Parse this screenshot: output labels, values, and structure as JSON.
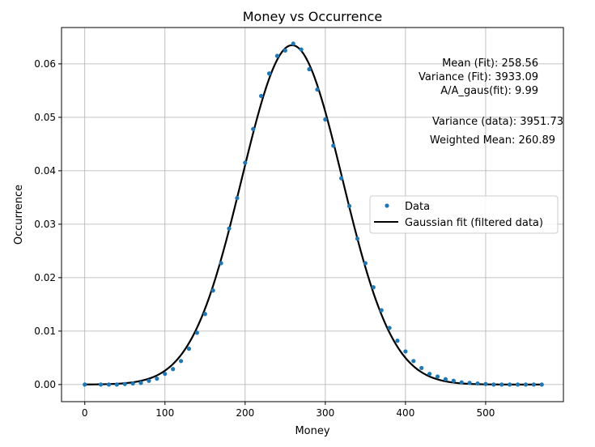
{
  "chart_data": {
    "type": "scatter",
    "title": "Money vs Occurrence",
    "xlabel": "Money",
    "ylabel": "Occurrence",
    "xlim": [
      -29,
      597
    ],
    "ylim": [
      -0.0032,
      0.0668
    ],
    "xticks": [
      0,
      100,
      200,
      300,
      400,
      500
    ],
    "yticks": [
      0.0,
      0.01,
      0.02,
      0.03,
      0.04,
      0.05,
      0.06
    ],
    "xtick_labels": [
      "0",
      "100",
      "200",
      "300",
      "400",
      "500"
    ],
    "ytick_labels": [
      "0.00",
      "0.01",
      "0.02",
      "0.03",
      "0.04",
      "0.05",
      "0.06"
    ],
    "grid": true,
    "legend_position": "center-right",
    "series": [
      {
        "name": "Data",
        "kind": "scatter",
        "color": "#1f77b4",
        "x": [
          0,
          20,
          30,
          40,
          50,
          60,
          70,
          80,
          90,
          100,
          110,
          120,
          130,
          140,
          150,
          160,
          170,
          180,
          190,
          200,
          210,
          220,
          230,
          240,
          250,
          260,
          270,
          280,
          290,
          300,
          310,
          320,
          330,
          340,
          350,
          360,
          370,
          380,
          390,
          400,
          410,
          420,
          430,
          440,
          450,
          460,
          470,
          480,
          490,
          500,
          510,
          520,
          530,
          540,
          550,
          560,
          570
        ],
        "y": [
          0.0,
          0.0,
          0.0,
          0.0,
          0.0001,
          0.0002,
          0.0003,
          0.0007,
          0.0011,
          0.002,
          0.0029,
          0.0044,
          0.0067,
          0.0097,
          0.0132,
          0.0176,
          0.0227,
          0.0292,
          0.0349,
          0.0415,
          0.0478,
          0.054,
          0.0582,
          0.0615,
          0.0625,
          0.0638,
          0.0627,
          0.059,
          0.0552,
          0.0496,
          0.0447,
          0.0386,
          0.0334,
          0.0273,
          0.0227,
          0.0182,
          0.0139,
          0.0106,
          0.0082,
          0.0062,
          0.0044,
          0.0031,
          0.002,
          0.0015,
          0.001,
          0.0007,
          0.0004,
          0.0003,
          0.0002,
          0.0001,
          0.0,
          0.0,
          0.0,
          0.0,
          0.0,
          0.0,
          0.0
        ]
      },
      {
        "name": "Gaussian fit (filtered data)",
        "kind": "line",
        "color": "#000000",
        "x_range": [
          0,
          570
        ],
        "mean": 258.56,
        "variance": 3933.09,
        "amplitude_peak": 0.0635
      }
    ],
    "annotations": [
      "Mean (Fit): 258.56",
      "Variance (Fit): 3933.09",
      "A/A_gaus(fit): 9.99",
      "Variance (data): 3951.73",
      "Weighted Mean: 260.89"
    ]
  }
}
